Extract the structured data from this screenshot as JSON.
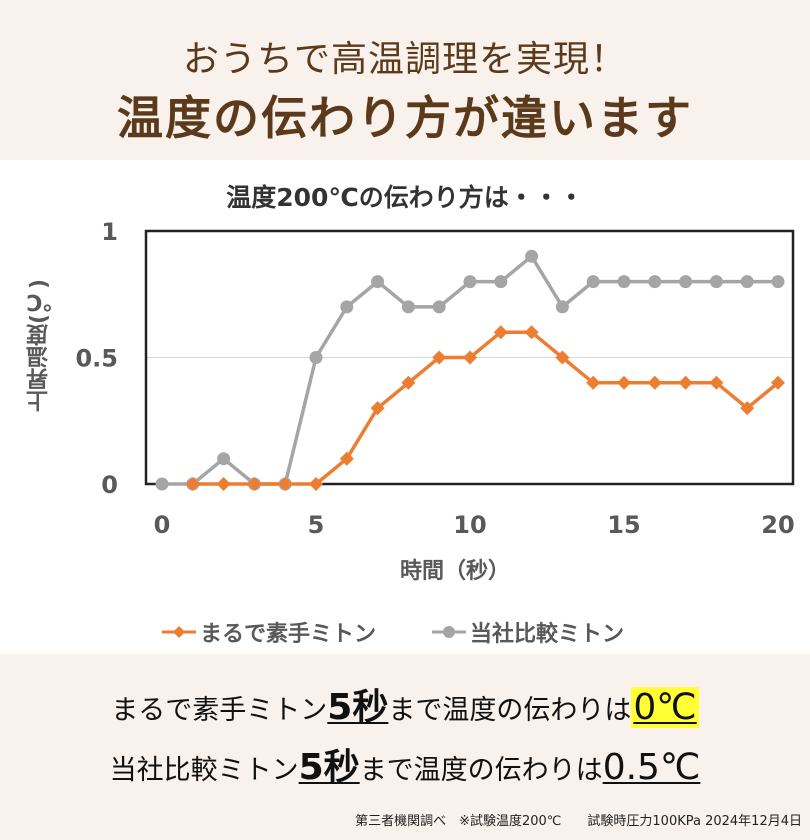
{
  "header": {
    "line1": "おうちで高温調理を実現！",
    "line2": "温度の伝わり方が違います"
  },
  "chart_data": {
    "type": "line",
    "title": "温度200℃の伝わり方は・・・",
    "xlabel": "時間（秒）",
    "ylabel": "上昇温度(℃)",
    "xlim": [
      0,
      20
    ],
    "ylim": [
      0,
      1
    ],
    "x_ticks": [
      "0",
      "5",
      "10",
      "15",
      "20"
    ],
    "y_ticks": [
      "0",
      "0.5",
      "1"
    ],
    "grid": "horizontal at 0.5",
    "legend_position": "bottom",
    "series": [
      {
        "name": "まるで素手ミトン",
        "color": "#ed7d31",
        "marker": "diamond",
        "x": [
          1,
          2,
          3,
          4,
          5,
          6,
          7,
          8,
          9,
          10,
          11,
          12,
          13,
          14,
          15,
          16,
          17,
          18,
          19,
          20
        ],
        "values": [
          0,
          0,
          0,
          0,
          0,
          0.1,
          0.3,
          0.4,
          0.5,
          0.5,
          0.6,
          0.6,
          0.5,
          0.4,
          0.4,
          0.4,
          0.4,
          0.4,
          0.3,
          0.4
        ]
      },
      {
        "name": "当社比較ミトン",
        "color": "#a5a5a5",
        "marker": "circle",
        "x": [
          0,
          1,
          2,
          3,
          4,
          5,
          6,
          7,
          8,
          9,
          10,
          11,
          12,
          13,
          14,
          15,
          16,
          17,
          18,
          19,
          20
        ],
        "values": [
          0,
          0,
          0.1,
          0,
          0,
          0.5,
          0.7,
          0.8,
          0.7,
          0.7,
          0.8,
          0.8,
          0.9,
          0.7,
          0.8,
          0.8,
          0.8,
          0.8,
          0.8,
          0.8,
          0.8
        ]
      }
    ]
  },
  "summary": {
    "line1": {
      "prefix": "まるで素手ミトン",
      "time": "5秒",
      "middle": "まで温度の伝わりは",
      "value": "0℃"
    },
    "line2": {
      "prefix": "当社比較ミトン",
      "time": "5秒",
      "middle": "まで温度の伝わりは",
      "value": "0.5℃"
    }
  },
  "footnote": "第三者機関調べ　※試験温度200℃　　試験時圧力100KPa 2024年12月4日",
  "colors": {
    "band_bg": "#f9f1eb",
    "headline": "#5b3a1c",
    "highlight": "#ffff33"
  }
}
